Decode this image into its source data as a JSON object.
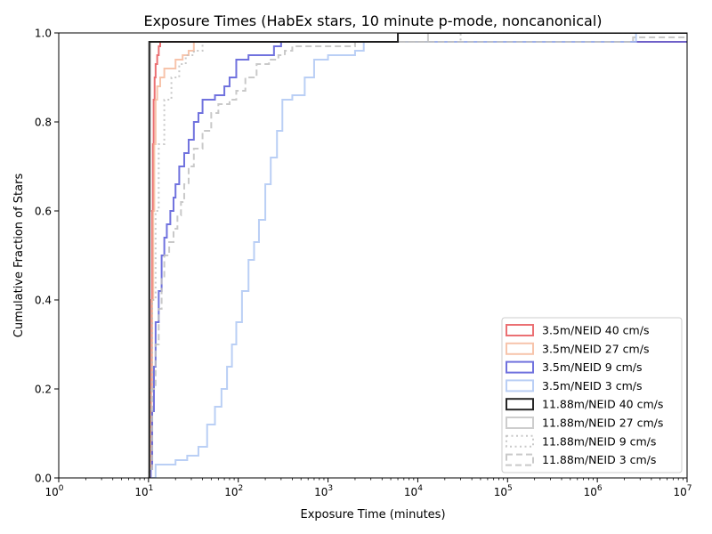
{
  "chart_data": {
    "type": "line",
    "title": "Exposure Times (HabEx stars, 10 minute p-mode, noncanonical)",
    "xlabel": "Exposure Time (minutes)",
    "ylabel": "Cumulative Fraction of Stars",
    "xscale": "log",
    "xlim": [
      1,
      10000000
    ],
    "ylim": [
      0,
      1.0
    ],
    "grid": false,
    "legend_position": "lower-right",
    "x_ticks": [
      {
        "value": 1,
        "base": "10",
        "exp": "0"
      },
      {
        "value": 10,
        "base": "10",
        "exp": "1"
      },
      {
        "value": 100,
        "base": "10",
        "exp": "2"
      },
      {
        "value": 1000,
        "base": "10",
        "exp": "3"
      },
      {
        "value": 10000,
        "base": "10",
        "exp": "4"
      },
      {
        "value": 100000,
        "base": "10",
        "exp": "5"
      },
      {
        "value": 1000000,
        "base": "10",
        "exp": "6"
      },
      {
        "value": 10000000,
        "base": "10",
        "exp": "7"
      }
    ],
    "y_ticks": [
      {
        "value": 0.0,
        "label": "0.0"
      },
      {
        "value": 0.2,
        "label": "0.2"
      },
      {
        "value": 0.4,
        "label": "0.4"
      },
      {
        "value": 0.6,
        "label": "0.6"
      },
      {
        "value": 0.8,
        "label": "0.8"
      },
      {
        "value": 1.0,
        "label": "1.0"
      }
    ],
    "series": [
      {
        "name": "3.5m/NEID 40 cm/s",
        "color": "#e8575a",
        "opacity": 0.85,
        "dash": "solid",
        "x": [
          10.5,
          10.6,
          10.8,
          11.0,
          11.2,
          11.4,
          11.7,
          12.0,
          12.5,
          13.0,
          13.5
        ],
        "y": [
          0.02,
          0.2,
          0.4,
          0.6,
          0.75,
          0.85,
          0.9,
          0.93,
          0.95,
          0.97,
          0.98
        ]
      },
      {
        "name": "3.5m/NEID 27 cm/s",
        "color": "#f5b596",
        "opacity": 0.8,
        "dash": "solid",
        "x": [
          10.5,
          10.8,
          11.0,
          11.3,
          11.6,
          12.0,
          12.5,
          13.5,
          15.0,
          20.0,
          24.0,
          28.0,
          32.0
        ],
        "y": [
          0.02,
          0.2,
          0.4,
          0.6,
          0.75,
          0.85,
          0.88,
          0.9,
          0.92,
          0.94,
          0.95,
          0.96,
          0.98
        ]
      },
      {
        "name": "3.5m/NEID 9 cm/s",
        "color": "#4c4fd6",
        "opacity": 0.8,
        "dash": "solid",
        "x": [
          10.6,
          11.0,
          11.5,
          12.0,
          13.0,
          14.0,
          15.0,
          16.0,
          17.5,
          19.0,
          20.0,
          22.0,
          25.0,
          28.0,
          32.0,
          36.0,
          40.0,
          55.0,
          70.0,
          80.0,
          95.0,
          130.0,
          250.0,
          300.0
        ],
        "y": [
          0.02,
          0.15,
          0.25,
          0.35,
          0.42,
          0.5,
          0.54,
          0.57,
          0.6,
          0.63,
          0.66,
          0.7,
          0.73,
          0.76,
          0.8,
          0.82,
          0.85,
          0.86,
          0.88,
          0.9,
          0.94,
          0.95,
          0.97,
          0.98
        ]
      },
      {
        "name": "3.5m/NEID 3 cm/s",
        "color": "#a9c3f2",
        "opacity": 0.8,
        "dash": "solid",
        "x": [
          11.0,
          12.0,
          20.0,
          27.0,
          36.0,
          45.0,
          55.0,
          65.0,
          75.0,
          85.0,
          95.0,
          110.0,
          130.0,
          150.0,
          170.0,
          200.0,
          230.0,
          270.0,
          310.0,
          400.0,
          550.0,
          700.0,
          1000.0,
          2000.0,
          2500.0,
          2700000.0
        ],
        "y": [
          0.0,
          0.03,
          0.04,
          0.05,
          0.07,
          0.12,
          0.16,
          0.2,
          0.25,
          0.3,
          0.35,
          0.42,
          0.49,
          0.53,
          0.58,
          0.66,
          0.72,
          0.78,
          0.85,
          0.86,
          0.9,
          0.94,
          0.95,
          0.96,
          0.98,
          1.0
        ]
      },
      {
        "name": "11.88m/NEID 40 cm/s",
        "color": "#000000",
        "opacity": 0.85,
        "dash": "solid",
        "x": [
          10.0,
          10.2,
          6000.0
        ],
        "y": [
          0.0,
          0.98,
          1.0
        ]
      },
      {
        "name": "11.88m/NEID 27 cm/s",
        "color": "#c0c0c0",
        "opacity": 0.8,
        "dash": "solid",
        "x": [
          10.0,
          10.3,
          10.5,
          13000.0
        ],
        "y": [
          0.0,
          0.6,
          0.98,
          1.0
        ]
      },
      {
        "name": "11.88m/NEID 9 cm/s",
        "color": "#c0c0c0",
        "opacity": 0.85,
        "dash": "dotted",
        "x": [
          10.2,
          10.5,
          11.0,
          12.0,
          13.0,
          15.0,
          18.0,
          22.0,
          26.0,
          32.0,
          40.0,
          30000.0
        ],
        "y": [
          0.02,
          0.2,
          0.4,
          0.6,
          0.75,
          0.85,
          0.9,
          0.93,
          0.95,
          0.96,
          0.98,
          1.0
        ]
      },
      {
        "name": "11.88m/NEID 3 cm/s",
        "color": "#c0c0c0",
        "opacity": 0.85,
        "dash": "dashed",
        "x": [
          10.3,
          11.0,
          12.0,
          13.0,
          14.0,
          15.0,
          17.0,
          19.0,
          21.0,
          23.0,
          25.0,
          28.0,
          32.0,
          40.0,
          50.0,
          60.0,
          80.0,
          95.0,
          120.0,
          160.0,
          220.0,
          280.0,
          330.0,
          400.0,
          2000.0,
          300000.0,
          2500000.0
        ],
        "y": [
          0.02,
          0.2,
          0.3,
          0.38,
          0.45,
          0.5,
          0.53,
          0.56,
          0.59,
          0.62,
          0.66,
          0.7,
          0.74,
          0.78,
          0.82,
          0.84,
          0.85,
          0.87,
          0.9,
          0.93,
          0.94,
          0.95,
          0.96,
          0.97,
          0.98,
          0.98,
          0.99
        ]
      }
    ]
  }
}
